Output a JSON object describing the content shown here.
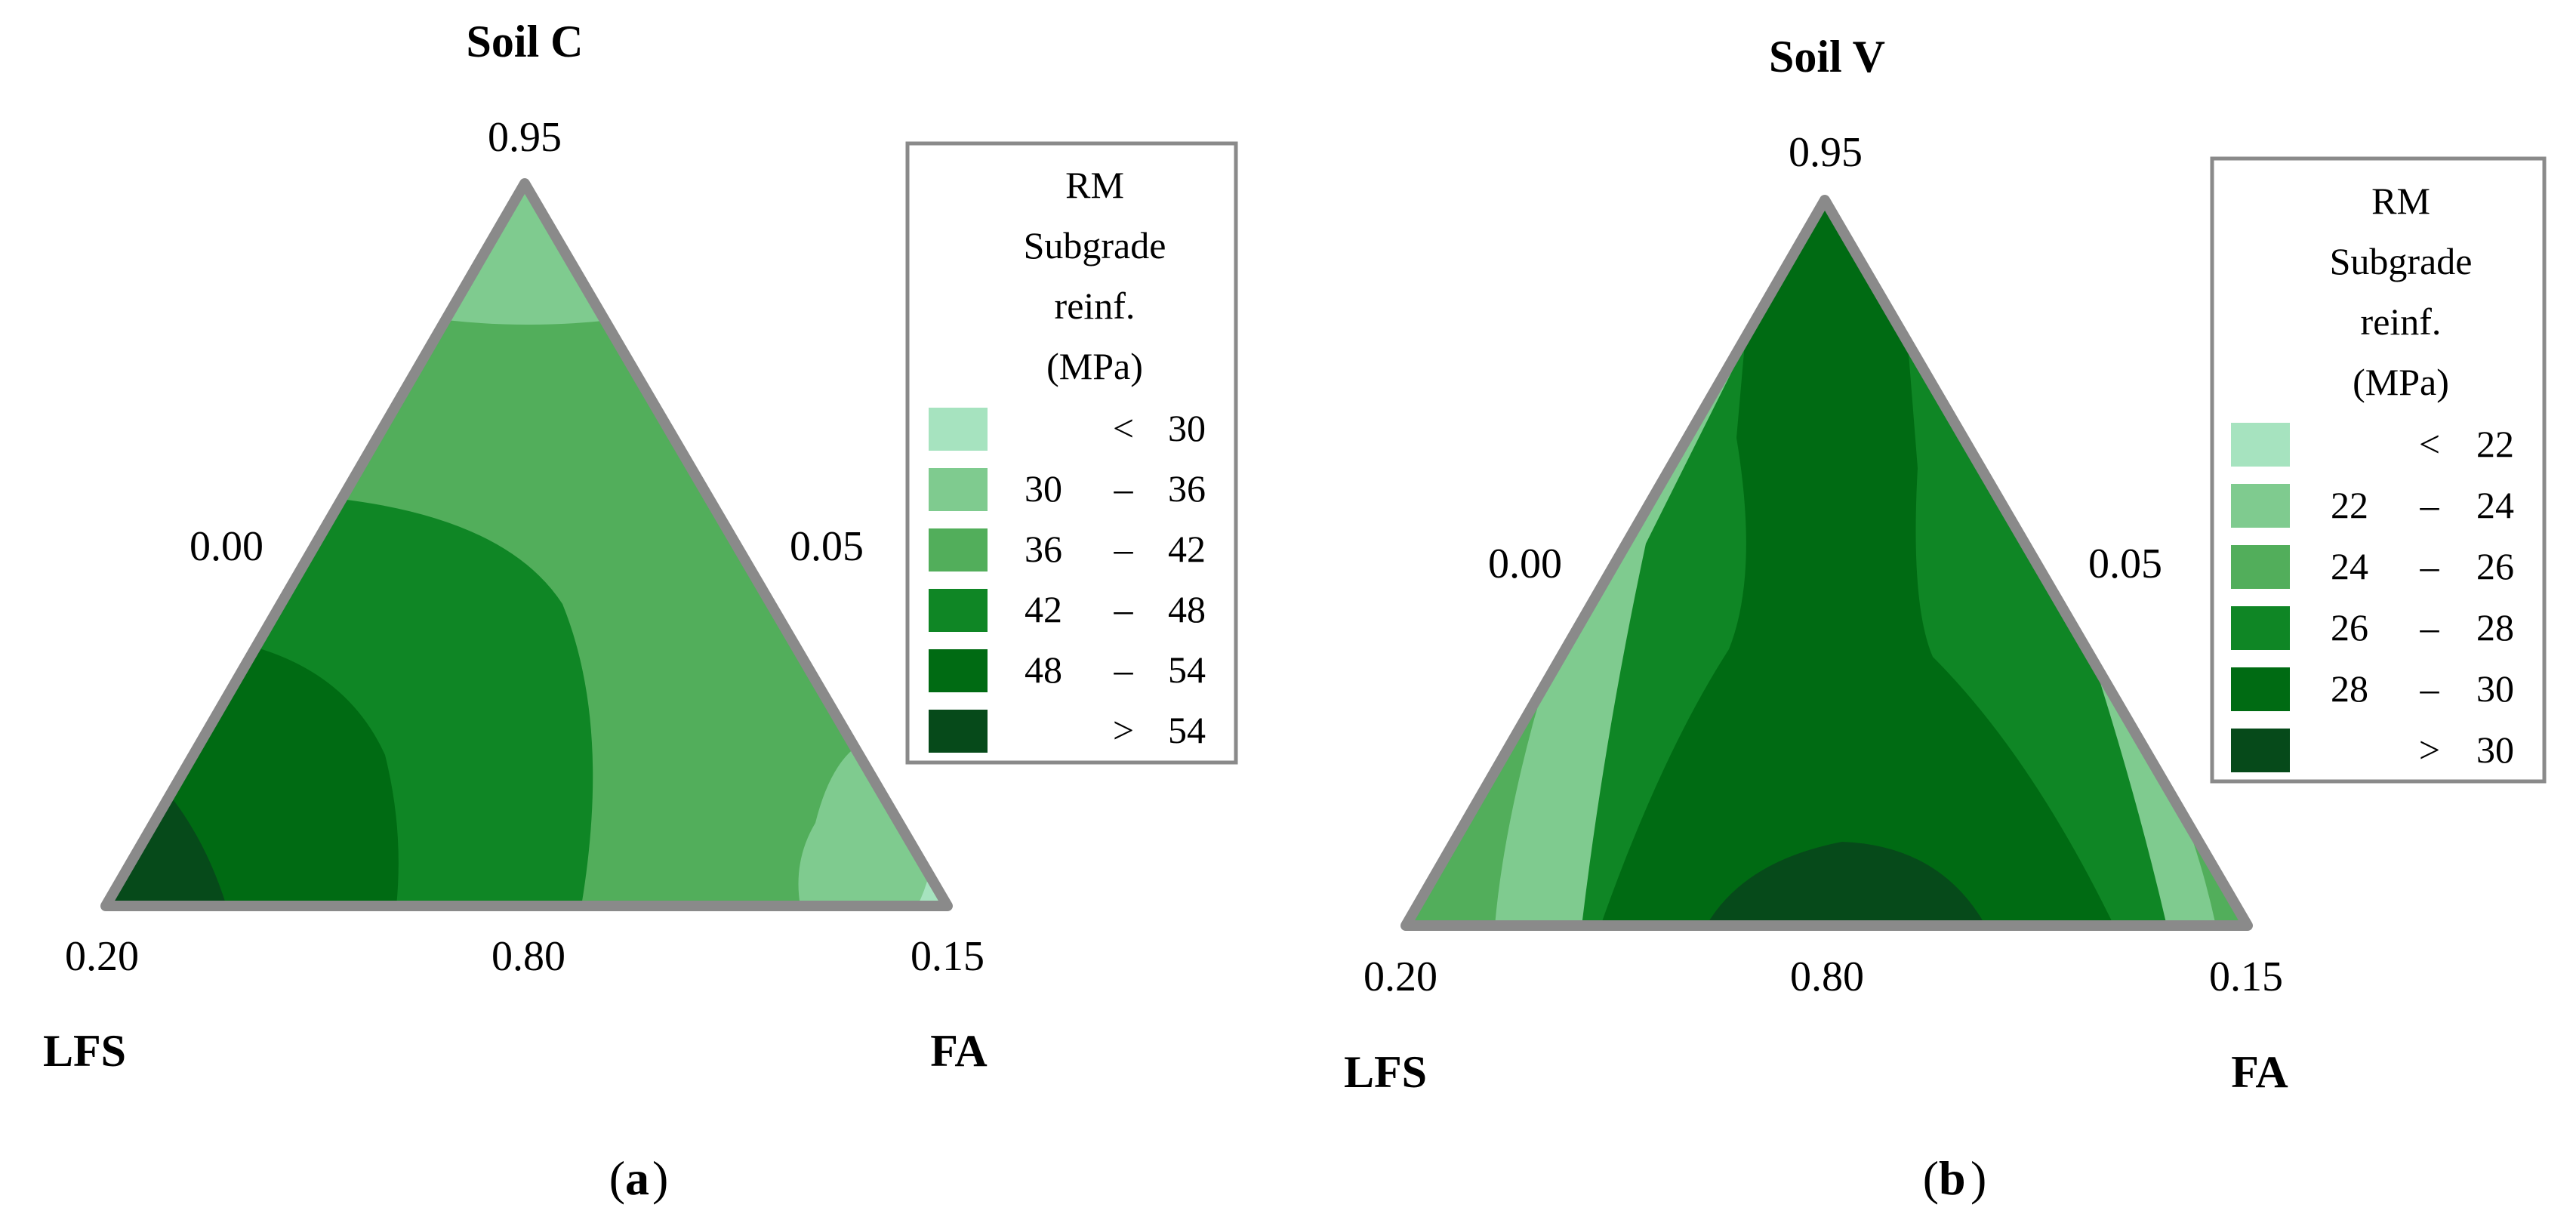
{
  "chart_data": [
    {
      "type": "ternary-contour",
      "panel_label": "a",
      "title": "Soil C",
      "corner_labels": {
        "left": "LFS",
        "right": "FA"
      },
      "tick_labels": {
        "top": "0.95",
        "left_edge": "0.00",
        "right_edge": "0.05",
        "bottom_left": "0.20",
        "bottom_mid": "0.80",
        "bottom_right": "0.15"
      },
      "legend": {
        "title_lines": [
          "RM",
          "Subgrade",
          "reinf.",
          "(MPa)"
        ],
        "classes": [
          {
            "low": "",
            "sep": "<",
            "high": "30",
            "color": "#a6e3bf"
          },
          {
            "low": "30",
            "sep": "–",
            "high": "36",
            "color": "#7fcb8f"
          },
          {
            "low": "36",
            "sep": "–",
            "high": "42",
            "color": "#52ae5b"
          },
          {
            "low": "42",
            "sep": "–",
            "high": "48",
            "color": "#0f8625"
          },
          {
            "low": "48",
            "sep": "–",
            "high": "54",
            "color": "#006b13"
          },
          {
            "low": "",
            "sep": ">",
            "high": "54",
            "color": "#064a1a"
          }
        ]
      }
    },
    {
      "type": "ternary-contour",
      "panel_label": "b",
      "title": "Soil V",
      "corner_labels": {
        "left": "LFS",
        "right": "FA"
      },
      "tick_labels": {
        "top": "0.95",
        "left_edge": "0.00",
        "right_edge": "0.05",
        "bottom_left": "0.20",
        "bottom_mid": "0.80",
        "bottom_right": "0.15"
      },
      "legend": {
        "title_lines": [
          "RM",
          "Subgrade",
          "reinf.",
          "(MPa)"
        ],
        "classes": [
          {
            "low": "",
            "sep": "<",
            "high": "22",
            "color": "#a6e3bf"
          },
          {
            "low": "22",
            "sep": "–",
            "high": "24",
            "color": "#7fcb8f"
          },
          {
            "low": "24",
            "sep": "–",
            "high": "26",
            "color": "#52ae5b"
          },
          {
            "low": "26",
            "sep": "–",
            "high": "28",
            "color": "#0f8625"
          },
          {
            "low": "28",
            "sep": "–",
            "high": "30",
            "color": "#006b13"
          },
          {
            "low": "",
            "sep": ">",
            "high": "30",
            "color": "#064a1a"
          }
        ]
      }
    }
  ],
  "border_color": "#8a8a8a"
}
